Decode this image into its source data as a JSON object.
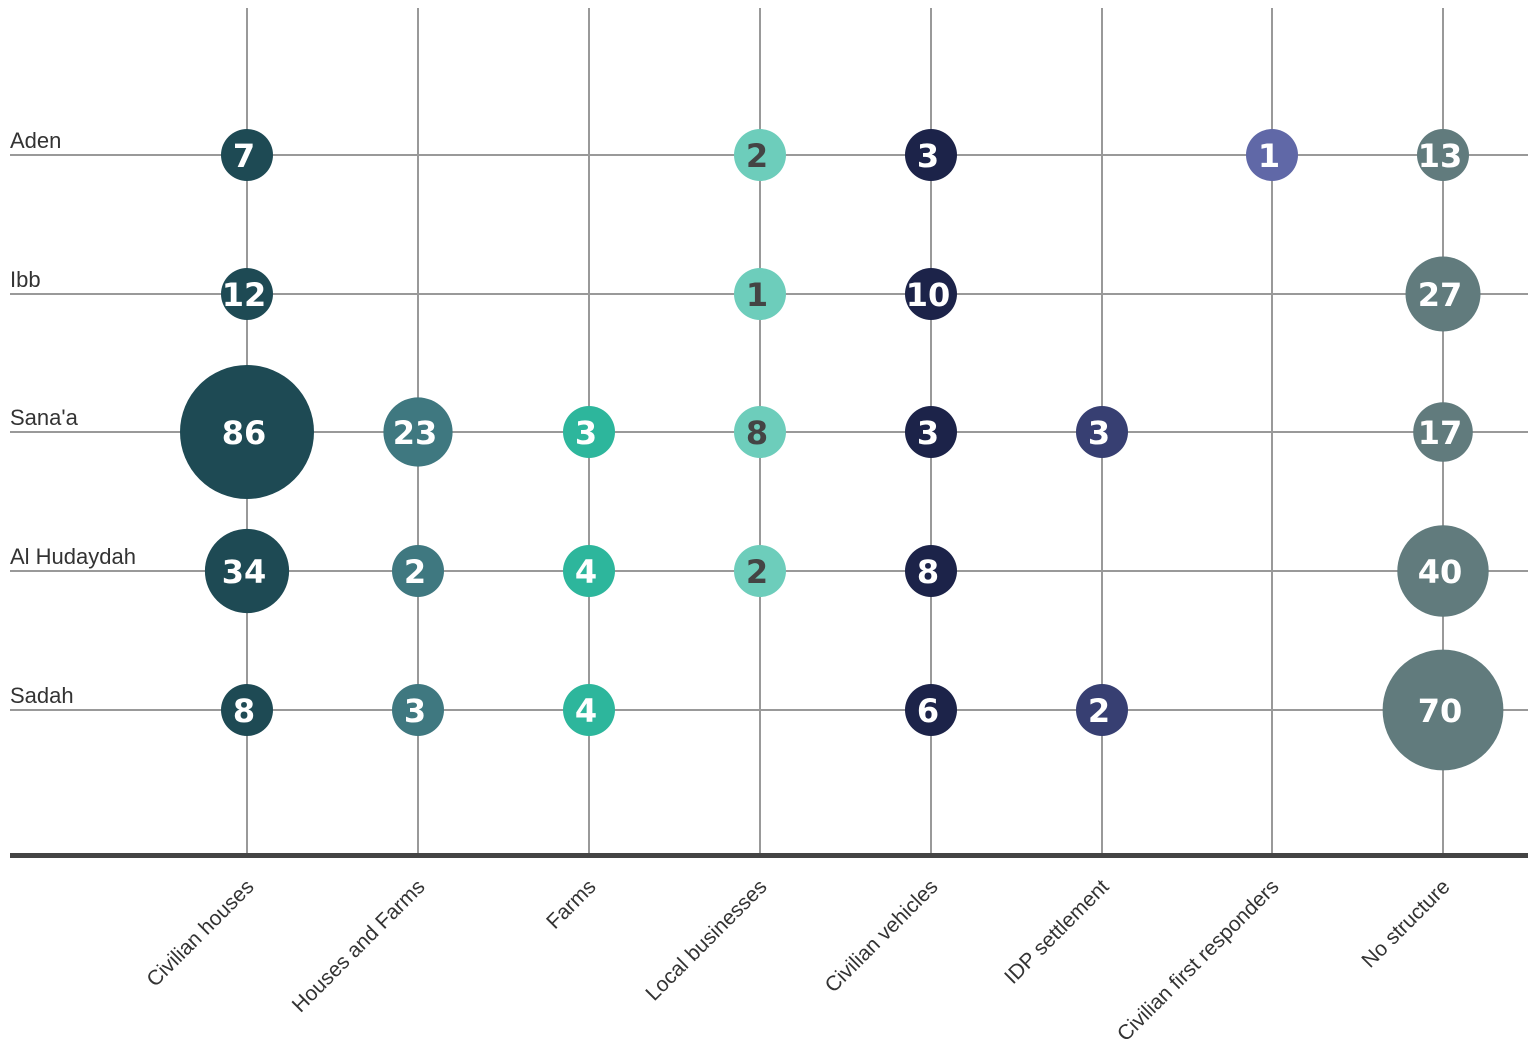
{
  "chart_data": {
    "type": "bubble",
    "categories": [
      "Civilian houses",
      "Houses and Farms",
      "Farms",
      "Local businesses",
      "Civilian vehicles",
      "IDP settlement",
      "Civilian first responders",
      "No structure"
    ],
    "rows": [
      "Aden",
      "Ibb",
      "Sana'a",
      "Al Hudaydah",
      "Sadah"
    ],
    "series": [
      {
        "category": "Civilian houses",
        "color": "#1e4a54",
        "text_color": "#ffffff",
        "values": [
          7,
          12,
          86,
          34,
          8
        ]
      },
      {
        "category": "Houses and Farms",
        "color": "#3f7880",
        "text_color": "#ffffff",
        "values": [
          null,
          null,
          23,
          2,
          3
        ]
      },
      {
        "category": "Farms",
        "color": "#2db69c",
        "text_color": "#ffffff",
        "values": [
          null,
          null,
          3,
          4,
          4
        ]
      },
      {
        "category": "Local businesses",
        "color": "#6dcdbb",
        "text_color": "#444444",
        "values": [
          2,
          1,
          8,
          2,
          null
        ]
      },
      {
        "category": "Civilian vehicles",
        "color": "#1c2349",
        "text_color": "#ffffff",
        "values": [
          3,
          10,
          3,
          8,
          6
        ]
      },
      {
        "category": "IDP settlement",
        "color": "#373f72",
        "text_color": "#ffffff",
        "values": [
          null,
          null,
          3,
          null,
          2
        ]
      },
      {
        "category": "Civilian first responders",
        "color": "#6068a7",
        "text_color": "#ffffff",
        "values": [
          1,
          null,
          null,
          null,
          null
        ]
      },
      {
        "category": "No structure",
        "color": "#617b7d",
        "text_color": "#ffffff",
        "values": [
          13,
          27,
          17,
          40,
          70
        ]
      }
    ]
  }
}
